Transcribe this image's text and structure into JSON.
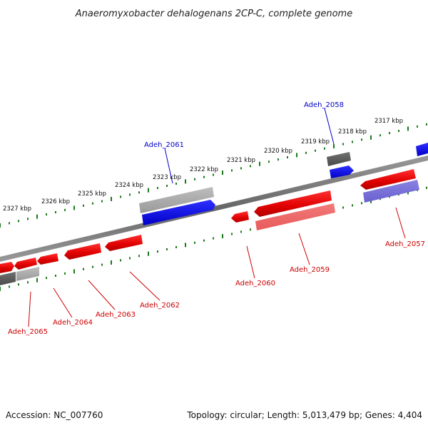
{
  "title": "Anaeromyxobacter dehalogenans 2CP-C, complete genome",
  "footer": {
    "accession": "Accession: NC_007760",
    "summary": "Topology: circular; Length: 5,013,479 bp; Genes: 4,404"
  },
  "colors": {
    "backbone": "#777777",
    "ticks": "#1a7a1a",
    "red": "#e01010",
    "blue": "#0b0be0",
    "label_red": "#cc0000",
    "label_blue": "#0000cc"
  },
  "tick_labels": [
    "2327 kbp",
    "2326 kbp",
    "2325 kbp",
    "2324 kbp",
    "2323 kbp",
    "2322 kbp",
    "2321 kbp",
    "2320 kbp",
    "2319 kbp",
    "2318 kbp",
    "2317 kbp"
  ],
  "genes": [
    {
      "label": "Adeh_2065",
      "color": "red"
    },
    {
      "label": "Adeh_2064",
      "color": "red"
    },
    {
      "label": "Adeh_2063",
      "color": "red"
    },
    {
      "label": "Adeh_2062",
      "color": "red"
    },
    {
      "label": "Adeh_2061",
      "color": "blue"
    },
    {
      "label": "Adeh_2060",
      "color": "red"
    },
    {
      "label": "Adeh_2059",
      "color": "red"
    },
    {
      "label": "Adeh_2058",
      "color": "blue"
    },
    {
      "label": "Adeh_2057",
      "color": "red"
    }
  ]
}
